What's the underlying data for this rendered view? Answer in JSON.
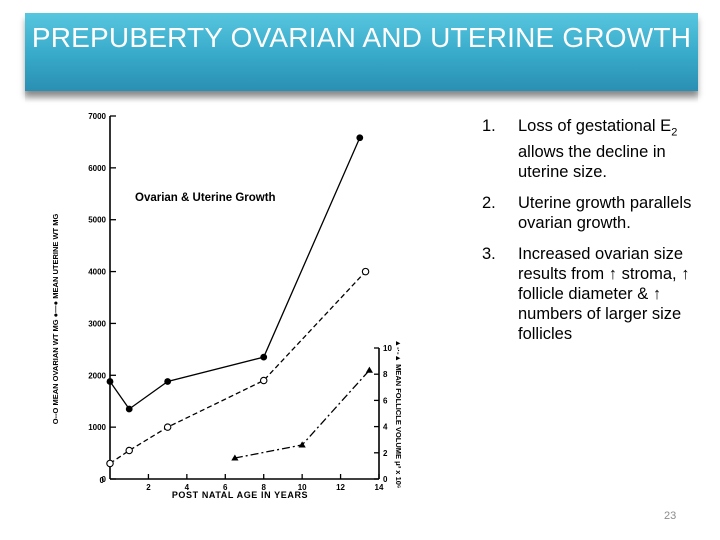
{
  "slide": {
    "title": "PREPUBERTY OVARIAN AND UTERINE GROWTH",
    "page_number": "23"
  },
  "bullets": {
    "item1": {
      "num": "1.",
      "text_a": "Loss of gestational E",
      "sub": "2",
      "text_b": " allows the decline in uterine size."
    },
    "item2": {
      "num": "2.",
      "text": "Uterine growth parallels ovarian growth."
    },
    "item3": {
      "num": "3.",
      "text_a": "Increased ovarian size results from ",
      "arrow": "↑",
      "text_b": " stroma, ",
      "text_c": " follicle diameter & ",
      "text_d": " numbers of larger size follicles"
    }
  },
  "chart_data": {
    "type": "line",
    "title": "Ovarian & Uterine Growth",
    "xlabel": "POST NATAL AGE IN YEARS",
    "ylabel_left": "O--O MEAN OVARIAN WT MG  ●—● MEAN UTERINE WT MG",
    "ylabel_right": "▲-·-▲ MEAN FOLLICLE VOLUME μ³ x 10⁶",
    "xlim": [
      0,
      14
    ],
    "ylim_left": [
      0,
      7000
    ],
    "ylim_right": [
      0,
      10
    ],
    "x_ticks": [
      "2",
      "4",
      "6",
      "8",
      "10",
      "12",
      "14"
    ],
    "y_ticks_left": [
      "0",
      "1000",
      "2000",
      "3000",
      "4000",
      "5000",
      "6000",
      "7000"
    ],
    "y_ticks_right": [
      "0",
      "2",
      "4",
      "6",
      "8",
      "10"
    ],
    "series": [
      {
        "name": "MEAN UTERINE WT MG",
        "axis": "left",
        "marker": "filled-circle",
        "line": "solid",
        "x": [
          0,
          1,
          3,
          8,
          13
        ],
        "y": [
          1880,
          1350,
          1880,
          2350,
          6580
        ]
      },
      {
        "name": "MEAN OVARIAN WT MG",
        "axis": "left",
        "marker": "open-circle",
        "line": "dashed",
        "x": [
          0,
          1,
          3,
          8,
          13.3
        ],
        "y": [
          300,
          550,
          1000,
          1900,
          4000
        ]
      },
      {
        "name": "MEAN FOLLICLE VOLUME",
        "axis": "right",
        "marker": "triangle",
        "line": "dash-dot",
        "x": [
          6.5,
          10,
          13.5
        ],
        "y": [
          1.6,
          2.6,
          8.3
        ]
      }
    ]
  }
}
